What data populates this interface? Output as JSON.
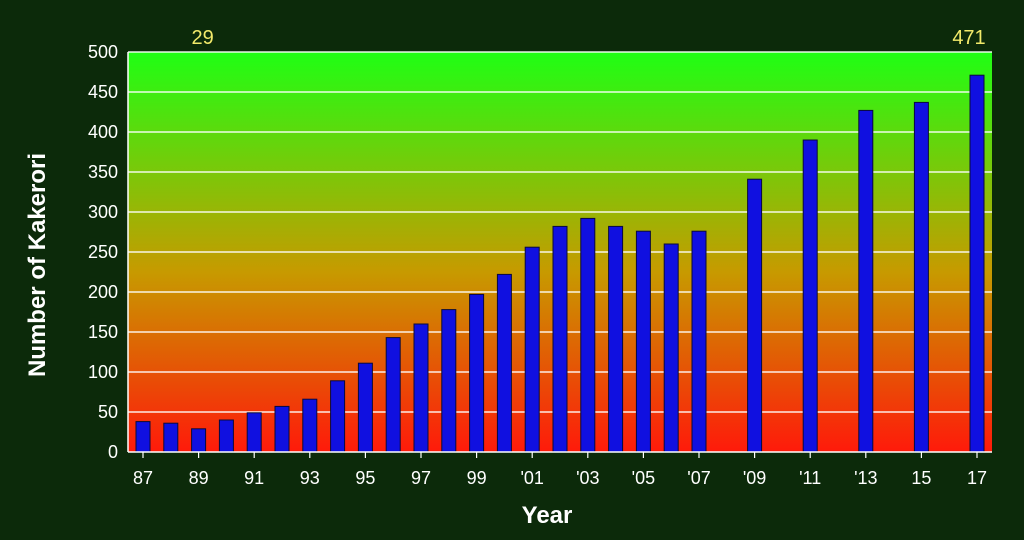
{
  "chart_data": {
    "type": "bar",
    "title": "",
    "xlabel": "Year",
    "ylabel": "Number of Kakerori",
    "ylim": [
      0,
      500
    ],
    "yticks": [
      0,
      50,
      100,
      150,
      200,
      250,
      300,
      350,
      400,
      450,
      500
    ],
    "grid": true,
    "legend": "none",
    "colors": {
      "bar_fill": "#1010e0",
      "bar_stroke": "#0a0a3a",
      "background_top": "#1fff14",
      "background_mid": "#c79a00",
      "background_bottom": "#ff1a0a",
      "page_background": "#0c2a0a",
      "gridline": "#ffffff",
      "annotation": "#f2ea6a"
    },
    "x_tick_labels": [
      "87",
      "89",
      "91",
      "93",
      "95",
      "97",
      "99",
      "'01",
      "'03",
      "'05",
      "'07",
      "'09",
      "'11",
      "'13",
      "15",
      "17"
    ],
    "categories": [
      "1987",
      "1988",
      "1989",
      "1990",
      "1991",
      "1992",
      "1993",
      "1994",
      "1995",
      "1996",
      "1997",
      "1998",
      "1999",
      "2000",
      "2001",
      "2002",
      "2003",
      "2004",
      "2005",
      "2006",
      "2007",
      "2009",
      "2011",
      "2013",
      "2015",
      "2017"
    ],
    "values": [
      38,
      36,
      29,
      40,
      49,
      57,
      66,
      89,
      111,
      143,
      160,
      178,
      197,
      222,
      256,
      282,
      292,
      282,
      276,
      260,
      276,
      341,
      390,
      427,
      437,
      471
    ],
    "annotations": [
      {
        "text": "29",
        "category": "1989"
      },
      {
        "text": "471",
        "category": "2017"
      }
    ]
  }
}
